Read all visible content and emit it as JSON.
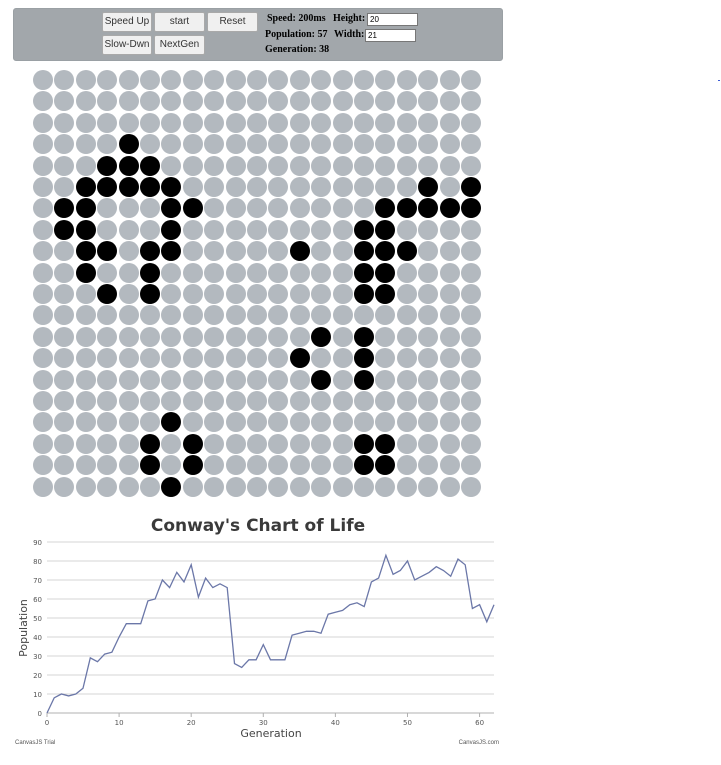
{
  "controls": {
    "speed_up": "Speed Up",
    "start": "start",
    "reset": "Reset",
    "slow_down": "Slow-Dwn",
    "next_gen": "NextGen",
    "speed_label": "Speed: 200ms",
    "height_label": "Height:",
    "height_value": "20",
    "population_label": "Population: 57",
    "width_label": "Width:",
    "width_value": "21",
    "generation_label": "Generation: 38"
  },
  "board": {
    "rows": 20,
    "cols": 21,
    "alive_color": "#000000",
    "dead_color": "#b3b9bf",
    "alive": [
      [
        3,
        4
      ],
      [
        4,
        3
      ],
      [
        4,
        4
      ],
      [
        4,
        5
      ],
      [
        5,
        2
      ],
      [
        5,
        3
      ],
      [
        5,
        4
      ],
      [
        5,
        5
      ],
      [
        5,
        6
      ],
      [
        5,
        18
      ],
      [
        5,
        20
      ],
      [
        6,
        1
      ],
      [
        6,
        2
      ],
      [
        6,
        6
      ],
      [
        6,
        7
      ],
      [
        6,
        16
      ],
      [
        6,
        17
      ],
      [
        6,
        18
      ],
      [
        6,
        19
      ],
      [
        6,
        20
      ],
      [
        7,
        1
      ],
      [
        7,
        2
      ],
      [
        7,
        6
      ],
      [
        7,
        15
      ],
      [
        7,
        16
      ],
      [
        8,
        2
      ],
      [
        8,
        3
      ],
      [
        8,
        5
      ],
      [
        8,
        6
      ],
      [
        8,
        12
      ],
      [
        8,
        15
      ],
      [
        8,
        16
      ],
      [
        8,
        17
      ],
      [
        9,
        2
      ],
      [
        9,
        5
      ],
      [
        9,
        15
      ],
      [
        9,
        16
      ],
      [
        10,
        3
      ],
      [
        10,
        5
      ],
      [
        10,
        15
      ],
      [
        10,
        16
      ],
      [
        12,
        13
      ],
      [
        12,
        15
      ],
      [
        13,
        12
      ],
      [
        13,
        15
      ],
      [
        14,
        13
      ],
      [
        14,
        15
      ],
      [
        16,
        6
      ],
      [
        17,
        5
      ],
      [
        17,
        7
      ],
      [
        17,
        15
      ],
      [
        17,
        16
      ],
      [
        18,
        5
      ],
      [
        18,
        7
      ],
      [
        18,
        15
      ],
      [
        18,
        16
      ],
      [
        19,
        6
      ]
    ]
  },
  "chart_data": {
    "type": "line",
    "title": "Conway's Chart of Life",
    "xlabel": "Generation",
    "ylabel": "Population",
    "xlim": [
      0,
      62
    ],
    "ylim": [
      0,
      90
    ],
    "xticks": [
      0,
      10,
      20,
      30,
      40,
      50,
      60
    ],
    "yticks": [
      0,
      10,
      20,
      30,
      40,
      50,
      60,
      70,
      80,
      90
    ],
    "grid": true,
    "line_color": "#6b77a8",
    "x": [
      0,
      1,
      2,
      3,
      4,
      5,
      6,
      7,
      8,
      9,
      10,
      11,
      12,
      13,
      14,
      15,
      16,
      17,
      18,
      19,
      20,
      21,
      22,
      23,
      24,
      25,
      26,
      27,
      28,
      29,
      30,
      31,
      32,
      33,
      34,
      35,
      36,
      37,
      38,
      39,
      40,
      41,
      42,
      43,
      44,
      45,
      46,
      47,
      48,
      49,
      50,
      51,
      52,
      53,
      54,
      55,
      56,
      57,
      58,
      59,
      60,
      61,
      62
    ],
    "y": [
      0,
      8,
      10,
      9,
      10,
      13,
      29,
      27,
      31,
      32,
      40,
      47,
      47,
      47,
      59,
      60,
      70,
      66,
      74,
      69,
      78,
      61,
      71,
      66,
      68,
      66,
      26,
      24,
      28,
      28,
      36,
      28,
      28,
      28,
      41,
      42,
      43,
      43,
      42,
      52,
      53,
      54,
      57,
      58,
      56,
      69,
      71,
      83,
      73,
      75,
      80,
      70,
      72,
      74,
      77,
      75,
      72,
      81,
      78,
      55,
      57,
      48,
      57
    ]
  },
  "footer": {
    "left": "CanvasJS Trial",
    "right": "CanvasJS.com"
  }
}
